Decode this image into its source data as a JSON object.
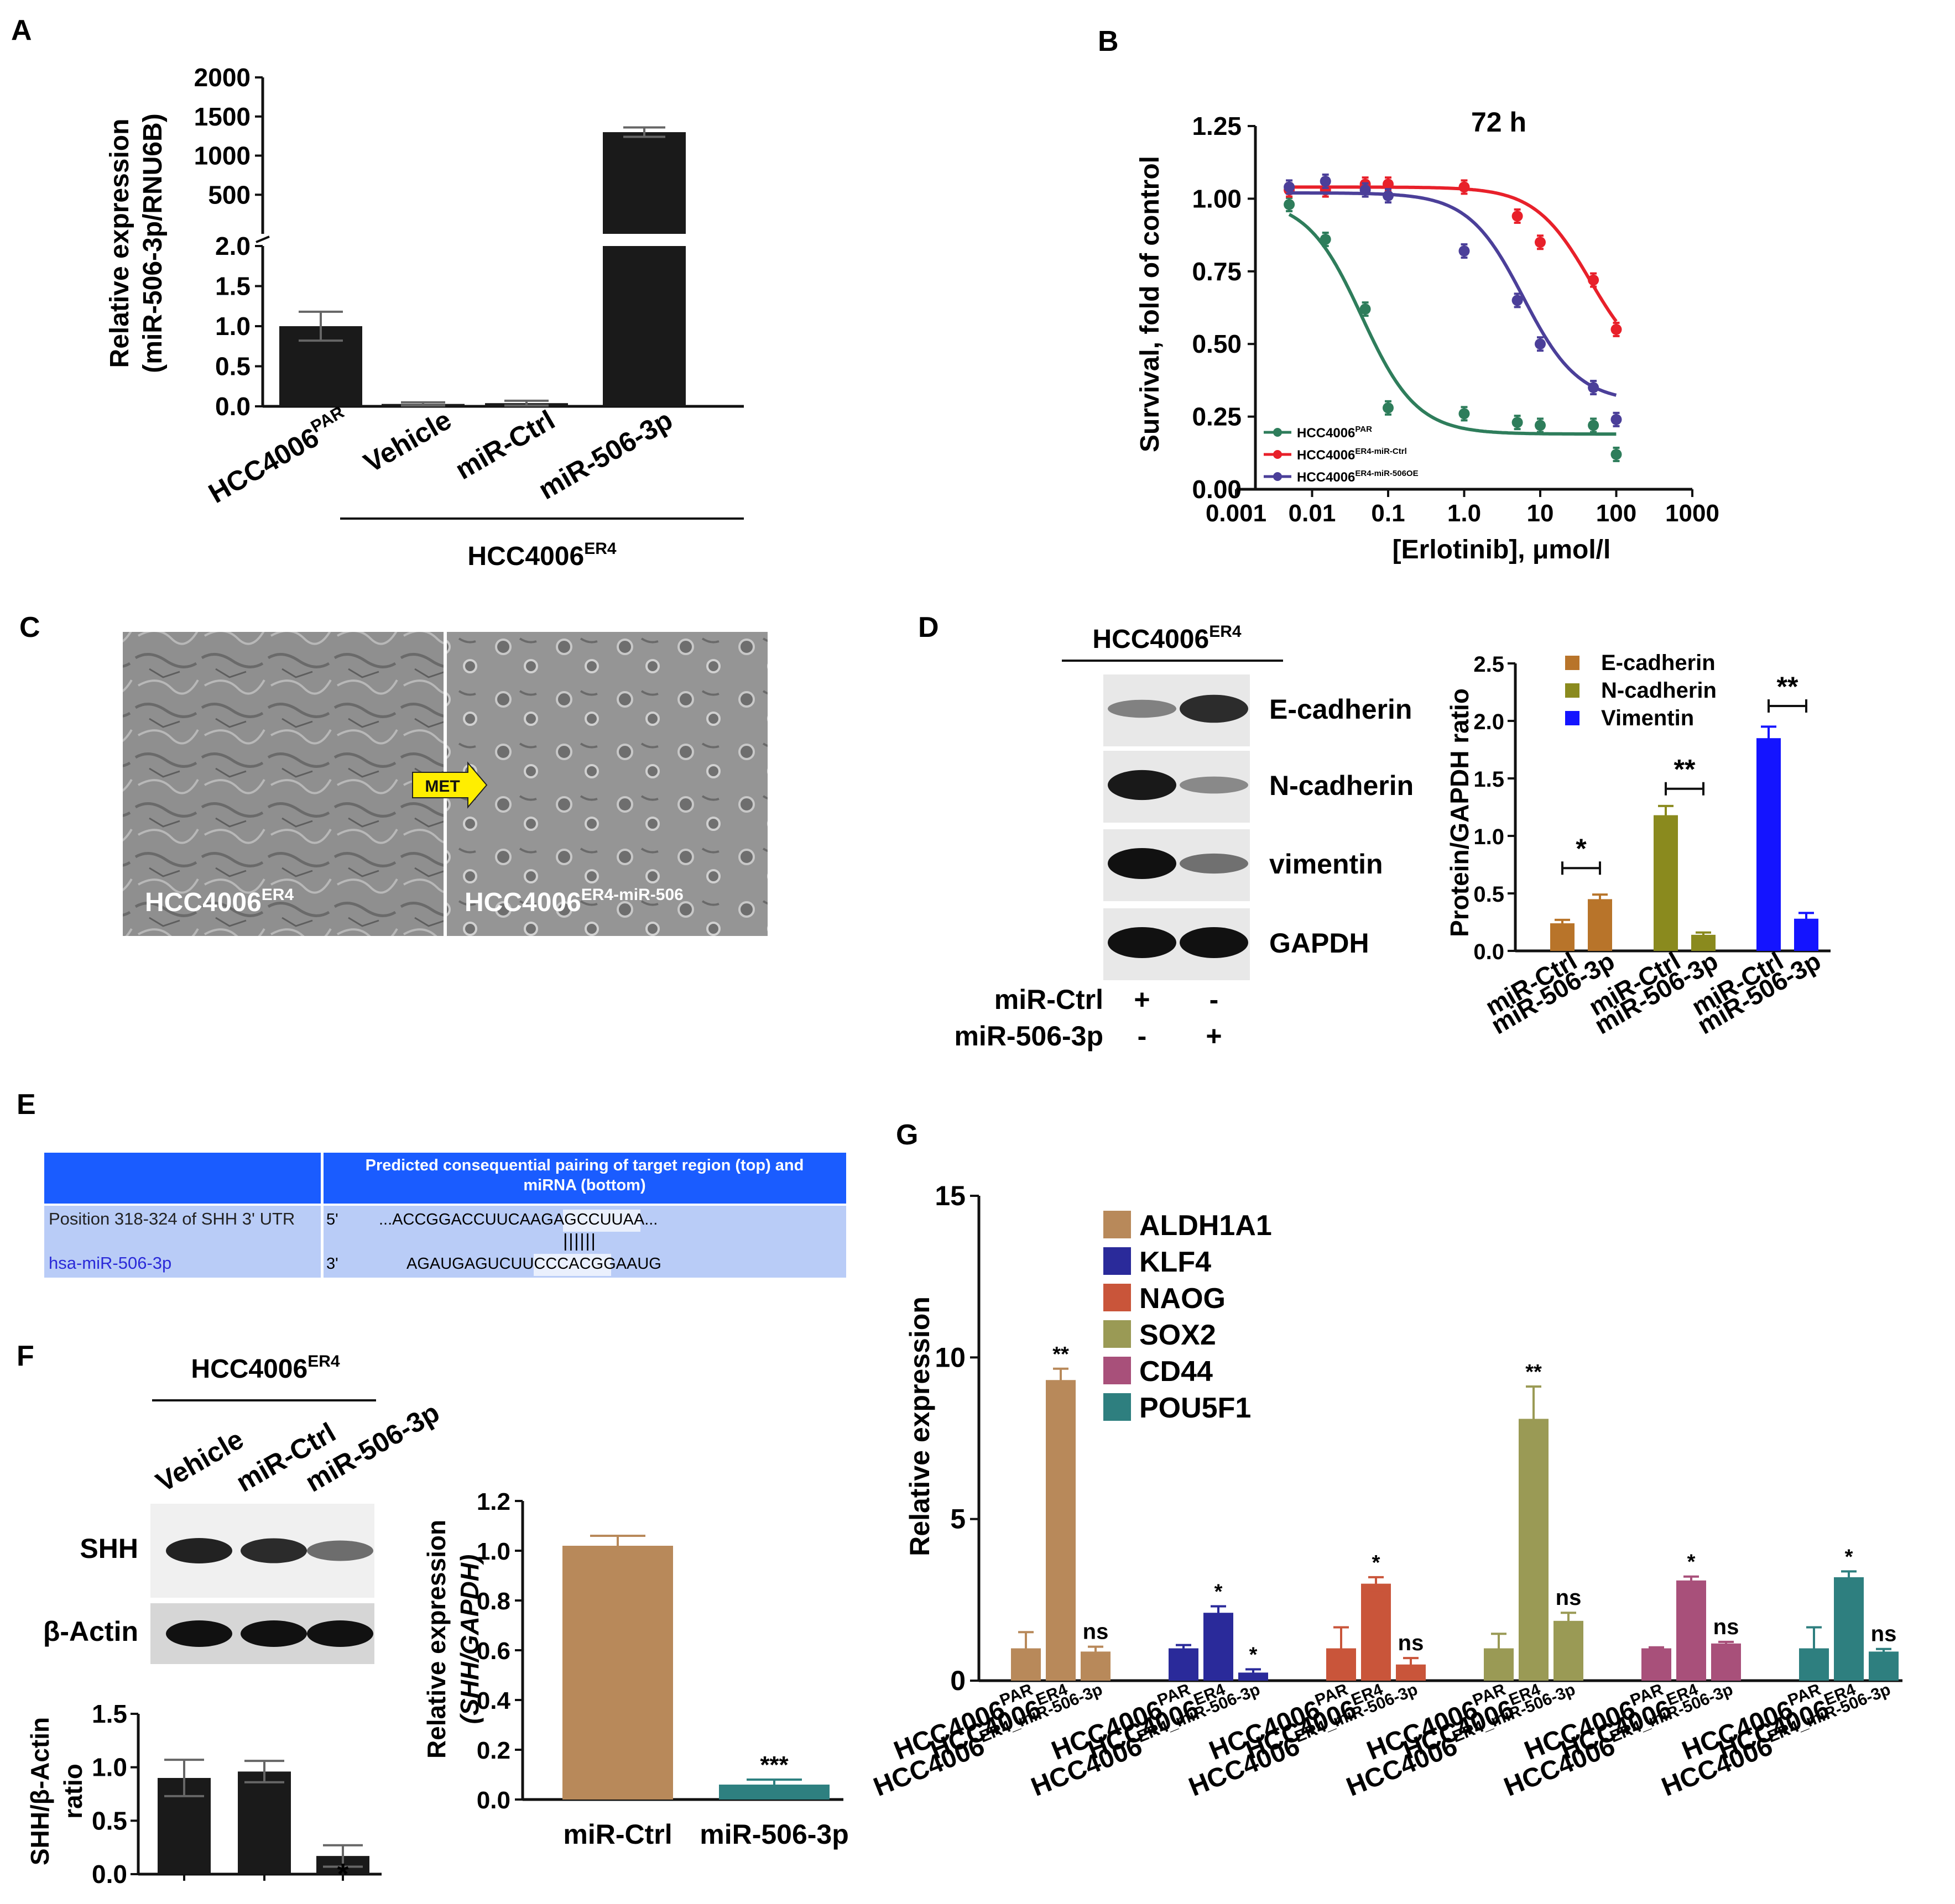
{
  "panel_labels": [
    "A",
    "B",
    "C",
    "D",
    "E",
    "F",
    "G"
  ],
  "colors": {
    "black": "#1a1a1a",
    "green": "#2e7d5b",
    "red": "#e8202a",
    "purple": "#4b3f99",
    "brown": "#b8742a",
    "olive": "#8a8a1e",
    "blue": "#1414ff",
    "tan": "#b8895a",
    "teal": "#2e8080",
    "g_aldh": "#b8895a",
    "g_klf4": "#2a2a9a",
    "g_naog": "#c9553a",
    "g_sox2": "#9a9a55",
    "g_cd44": "#a8507a",
    "g_pou": "#2e7f7f",
    "table_blue": "#1a5cff",
    "table_light": "#b9ccf7"
  },
  "panelA": {
    "ylabel_1": "Relative expression",
    "ylabel_2": "(miR-506-3p/RNU6B)",
    "group_label": "HCC4006",
    "group_sup": "ER4",
    "chart_data": {
      "type": "bar",
      "categories": [
        "HCC4006PAR",
        "Vehicle",
        "miR-Ctrl",
        "miR-506-3p"
      ],
      "values": [
        1.0,
        0.03,
        0.04,
        1300
      ],
      "errors": [
        0.18,
        0.02,
        0.03,
        60
      ],
      "lower_ticks": [
        "0.0",
        "0.5",
        "1.0",
        "1.5",
        "2.0"
      ],
      "upper_ticks": [
        "500",
        "1000",
        "1500",
        "2000"
      ],
      "axis_break": true
    },
    "xlabels": [
      {
        "main": "HCC4006",
        "sup": "PAR"
      },
      {
        "main": "Vehicle",
        "sup": ""
      },
      {
        "main": "miR-Ctrl",
        "sup": ""
      },
      {
        "main": "miR-506-3p",
        "sup": ""
      }
    ]
  },
  "panelB": {
    "title": "72 h",
    "ylabel": "Survival, fold of control",
    "xlabel": "[Erlotinib], μmol/l",
    "yticks": [
      "0.00",
      "0.25",
      "0.50",
      "0.75",
      "1.00",
      "1.25"
    ],
    "xticks": [
      "0.001",
      "0.01",
      "0.1",
      "1.0",
      "10",
      "100",
      "1000"
    ],
    "legend": [
      {
        "main": "HCC4006",
        "sup": "PAR"
      },
      {
        "main": "HCC4006",
        "sup": "ER4-miR-Ctrl"
      },
      {
        "main": "HCC4006",
        "sup": "ER4-miR-506OE"
      }
    ],
    "chart_data": {
      "type": "line",
      "x": [
        0.005,
        0.015,
        0.05,
        0.1,
        1.0,
        5,
        10,
        50,
        100
      ],
      "series": [
        {
          "name": "HCC4006PAR",
          "values": [
            0.98,
            0.86,
            0.62,
            0.28,
            0.26,
            0.23,
            0.22,
            0.22,
            0.12
          ],
          "ic50": 0.045,
          "top": 1.0,
          "bottom": 0.19
        },
        {
          "name": "HCC4006ER4-miR-Ctrl",
          "values": [
            1.03,
            1.03,
            1.05,
            1.05,
            1.04,
            0.94,
            0.85,
            0.72,
            0.55
          ],
          "ic50": 45,
          "top": 1.04,
          "bottom": 0.4
        },
        {
          "name": "HCC4006ER4-miR-506OE",
          "values": [
            1.04,
            1.06,
            1.03,
            1.01,
            0.82,
            0.65,
            0.5,
            0.35,
            0.24
          ],
          "ic50": 6,
          "top": 1.02,
          "bottom": 0.3
        }
      ]
    }
  },
  "panelC": {
    "label_left": "HCC4006",
    "label_left_sup": "ER4",
    "label_right": "HCC4006",
    "label_right_sup": "ER4-miR-506",
    "arrow_text": "MET"
  },
  "panelD": {
    "blot_title": "HCC4006",
    "blot_title_sup": "ER4",
    "bands": [
      "E-cadherin",
      "N-cadherin",
      "vimentin",
      "GAPDH"
    ],
    "treat_rows": [
      {
        "label": "miR-Ctrl",
        "signs": [
          "+",
          "-"
        ]
      },
      {
        "label": "miR-506-3p",
        "signs": [
          "-",
          "+"
        ]
      }
    ],
    "ylabel": "Protein/GAPDH ratio",
    "yticks": [
      "0.0",
      "0.5",
      "1.0",
      "1.5",
      "2.0",
      "2.5"
    ],
    "legend": [
      "E-cadherin",
      "N-cadherin",
      "Vimentin"
    ],
    "xlabels": [
      "miR-Ctrl",
      "miR-506-3p",
      "miR-Ctrl",
      "miR-506-3p",
      "miR-Ctrl",
      "miR-506-3p"
    ],
    "chart_data": {
      "type": "bar",
      "categories": [
        "miR-Ctrl",
        "miR-506-3p",
        "miR-Ctrl",
        "miR-506-3p",
        "miR-Ctrl",
        "miR-506-3p"
      ],
      "values": [
        0.24,
        0.45,
        1.18,
        0.14,
        1.85,
        0.28
      ],
      "errors": [
        0.03,
        0.04,
        0.08,
        0.02,
        0.1,
        0.05
      ],
      "groups": [
        "E-cadherin",
        "E-cadherin",
        "N-cadherin",
        "N-cadherin",
        "Vimentin",
        "Vimentin"
      ],
      "sig": [
        "*",
        "**",
        "**"
      ]
    }
  },
  "panelE": {
    "header": "Predicted consequential pairing of target region (top) and miRNA (bottom)",
    "row1_label": "Position 318-324 of SHH 3' UTR",
    "row1_dir": "5'",
    "row1_seq_a": "...ACCGGACCUUCAAGA",
    "row1_seq_b": "GCCUUAA",
    "row1_seq_c": "...",
    "pairs": "||||||",
    "row2_label": "hsa-miR-506-3p",
    "row2_dir": "3'",
    "row2_seq_a": "AGAUGAGUCUUCCCA",
    "row2_seq_b": "CGGAAUG"
  },
  "panelF": {
    "blot_title": "HCC4006",
    "blot_title_sup": "ER4",
    "lanes": [
      "Vehicle",
      "miR-Ctrl",
      "miR-506-3p"
    ],
    "bands": [
      "SHH",
      "β-Actin"
    ],
    "ratio_ylabel_1": "SHH/β-Actin",
    "ratio_ylabel_2": "ratio",
    "ratio_yticks": [
      "0.0",
      "0.5",
      "1.0",
      "1.5"
    ],
    "ratio_chart": {
      "type": "bar",
      "categories": [
        "Vehicle",
        "miR-Ctrl",
        "miR-506-3p"
      ],
      "values": [
        0.9,
        0.96,
        0.17
      ],
      "errors": [
        0.17,
        0.1,
        0.1
      ],
      "sig": [
        "",
        "",
        "*"
      ]
    },
    "rel_ylabel_1": "Relative expression",
    "rel_ylabel_2": "(SHH/GAPDH)",
    "rel_yticks": [
      "0.0",
      "0.2",
      "0.4",
      "0.6",
      "0.8",
      "1.0",
      "1.2"
    ],
    "rel_xlabels": [
      "miR-Ctrl",
      "miR-506-3p"
    ],
    "chart_data": {
      "type": "bar",
      "categories": [
        "miR-Ctrl",
        "miR-506-3p"
      ],
      "values": [
        1.02,
        0.06
      ],
      "errors": [
        0.04,
        0.02
      ],
      "sig": [
        "",
        "***"
      ]
    }
  },
  "panelG": {
    "ylabel": "Relative expression",
    "yticks": [
      "0",
      "5",
      "10",
      "15"
    ],
    "legend": [
      "ALDH1A1",
      "KLF4",
      "NAOG",
      "SOX2",
      "CD44",
      "POU5F1"
    ],
    "xlabels": [
      {
        "main": "HCC4006",
        "sup": "PAR"
      },
      {
        "main": "HCC4006",
        "sup": "ER4"
      },
      {
        "main": "HCC4006",
        "sup": "ER4_miR-506-3p"
      }
    ],
    "chart_data": {
      "type": "bar",
      "categories": [
        "HCC4006PAR",
        "HCC4006ER4",
        "HCC4006ER4_miR-506-3p"
      ],
      "ylim": [
        0,
        15
      ],
      "series": [
        {
          "name": "ALDH1A1",
          "values": [
            1.0,
            9.3,
            0.9
          ],
          "errors": [
            0.5,
            0.35,
            0.15
          ],
          "sig": [
            "",
            "**",
            "ns"
          ]
        },
        {
          "name": "KLF4",
          "values": [
            1.0,
            2.1,
            0.25
          ],
          "errors": [
            0.1,
            0.2,
            0.1
          ],
          "sig": [
            "",
            "*",
            "*"
          ]
        },
        {
          "name": "NAOG",
          "values": [
            1.0,
            3.0,
            0.5
          ],
          "errors": [
            0.65,
            0.2,
            0.2
          ],
          "sig": [
            "",
            "*",
            "ns"
          ]
        },
        {
          "name": "SOX2",
          "values": [
            1.0,
            8.1,
            1.85
          ],
          "errors": [
            0.45,
            1.0,
            0.25
          ],
          "sig": [
            "",
            "**",
            "ns"
          ]
        },
        {
          "name": "CD44",
          "values": [
            1.0,
            3.1,
            1.15
          ],
          "errors": [
            0.03,
            0.12,
            0.05
          ],
          "sig": [
            "",
            "*",
            "ns"
          ]
        },
        {
          "name": "POU5F1",
          "values": [
            1.0,
            3.2,
            0.9
          ],
          "errors": [
            0.65,
            0.18,
            0.08
          ],
          "sig": [
            "",
            "*",
            "ns"
          ]
        }
      ]
    }
  }
}
